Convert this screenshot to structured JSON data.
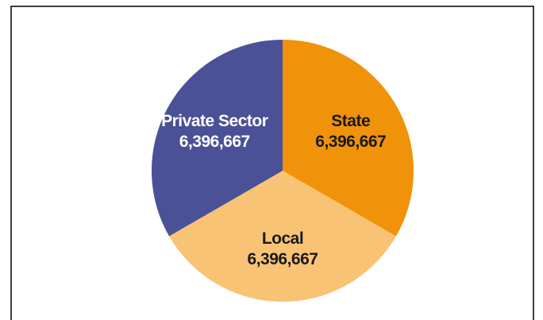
{
  "chart_data": {
    "type": "pie",
    "categories": [
      "State",
      "Local",
      "Private Sector"
    ],
    "values": [
      6396667,
      6396667,
      6396667
    ],
    "value_labels": [
      "6,396,667",
      "6,396,667",
      "6,396,667"
    ],
    "colors": [
      "#f0920a",
      "#f9c375",
      "#4b5196"
    ]
  }
}
